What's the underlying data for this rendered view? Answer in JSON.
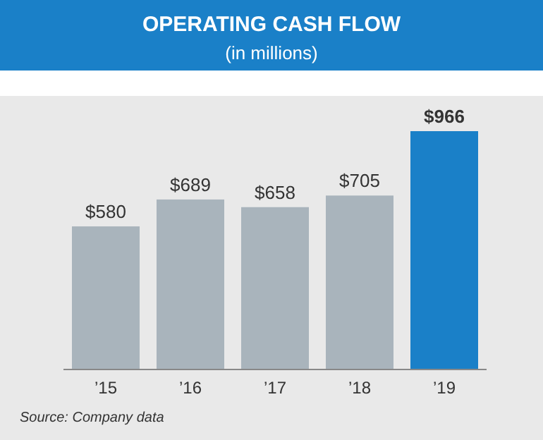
{
  "chart_data": {
    "type": "bar",
    "title": "OPERATING CASH FLOW",
    "subtitle": "(in millions)",
    "categories": [
      "’15",
      "’16",
      "’17",
      "’18",
      "’19"
    ],
    "values": [
      580,
      689,
      658,
      705,
      966
    ],
    "colors": [
      "#a9b4bc",
      "#a9b4bc",
      "#a9b4bc",
      "#a9b4bc",
      "#1a80c8"
    ],
    "value_labels": [
      "$580",
      "$689",
      "$658",
      "$705",
      "$966"
    ],
    "annotations": [
      "Source: Company data"
    ]
  }
}
